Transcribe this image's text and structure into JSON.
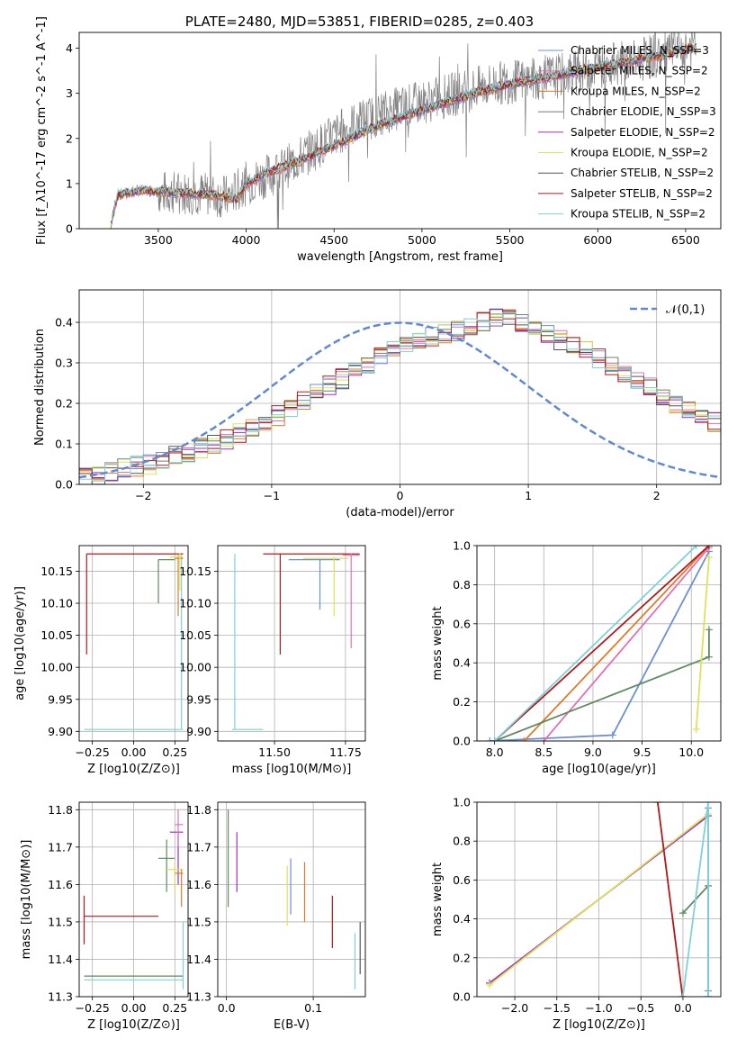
{
  "chart_data": [
    {
      "type": "line",
      "title": "PLATE=2480, MJD=53851, FIBERID=0285, z=0.403",
      "xlabel": "wavelength [Angstrom, rest frame]",
      "ylabel": "Flux [f_λ10^-17 erg cm^-2 s^-1 A^-1]",
      "xlim": [
        3050,
        6700
      ],
      "ylim": [
        0,
        4.35
      ],
      "xticks": [
        3500,
        4000,
        4500,
        5000,
        5500,
        6000,
        6500
      ],
      "yticks": [
        0,
        1,
        2,
        3,
        4
      ],
      "legend_position": "top-right",
      "data_spectrum": {
        "x": [
          3500,
          3700,
          3900,
          4000,
          4200,
          4400,
          4600,
          4800,
          5000,
          5200,
          5400,
          5600,
          5800,
          6000,
          6200,
          6400,
          6600
        ],
        "y": [
          0.8,
          0.8,
          0.7,
          1.0,
          1.3,
          1.8,
          2.3,
          2.6,
          2.8,
          3.0,
          3.2,
          3.3,
          3.4,
          3.6,
          3.7,
          3.9,
          4.1
        ]
      },
      "model_spectrum": {
        "x": [
          3230,
          3270,
          3400,
          3600,
          3800,
          3950,
          4000,
          4100,
          4300,
          4500,
          4700,
          4900,
          5100,
          5300,
          5500,
          5700,
          5900,
          6100,
          6300,
          6550
        ],
        "y": [
          0.1,
          0.75,
          0.85,
          0.8,
          0.75,
          0.65,
          1.0,
          1.2,
          1.5,
          1.85,
          2.2,
          2.5,
          2.75,
          3.0,
          3.2,
          3.35,
          3.5,
          3.65,
          3.8,
          4.0
        ]
      },
      "series": [
        {
          "name": "Chabrier MILES, N_SSP=3",
          "color": "#6b8fd6"
        },
        {
          "name": "Salpeter MILES, N_SSP=2",
          "color": "#e26fb3"
        },
        {
          "name": "Kroupa MILES, N_SSP=2",
          "color": "#e07b28"
        },
        {
          "name": "Chabrier ELODIE, N_SSP=3",
          "color": "#5e8a5e"
        },
        {
          "name": "Salpeter ELODIE, N_SSP=2",
          "color": "#9b30c4"
        },
        {
          "name": "Kroupa ELODIE, N_SSP=2",
          "color": "#dde25a"
        },
        {
          "name": "Chabrier STELIB, N_SSP=2",
          "color": "#555555"
        },
        {
          "name": "Salpeter STELIB, N_SSP=2",
          "color": "#b01818"
        },
        {
          "name": "Kroupa STELIB, N_SSP=2",
          "color": "#7fd0d8"
        }
      ]
    },
    {
      "type": "histogram",
      "xlabel": "(data-model)/error",
      "ylabel": "Normed distribution",
      "xlim": [
        -2.5,
        2.5
      ],
      "ylim": [
        0,
        0.48
      ],
      "xticks": [
        -2,
        -1,
        0,
        1,
        2
      ],
      "yticks": [
        0.0,
        0.1,
        0.2,
        0.3,
        0.4
      ],
      "grid": true,
      "legend": [
        "𝒩(0,1)"
      ],
      "legend_position": "top-right",
      "bin_width": 0.1,
      "bin_start": -2.5,
      "base_counts": [
        0.02,
        0.025,
        0.03,
        0.04,
        0.045,
        0.05,
        0.06,
        0.07,
        0.08,
        0.09,
        0.1,
        0.11,
        0.125,
        0.14,
        0.155,
        0.17,
        0.19,
        0.205,
        0.225,
        0.245,
        0.26,
        0.28,
        0.3,
        0.315,
        0.33,
        0.345,
        0.355,
        0.365,
        0.37,
        0.38,
        0.39,
        0.4,
        0.41,
        0.42,
        0.4,
        0.39,
        0.37,
        0.355,
        0.34,
        0.33,
        0.31,
        0.29,
        0.275,
        0.26,
        0.24,
        0.22,
        0.2,
        0.185,
        0.17,
        0.155,
        0.14,
        0.125,
        0.115,
        0.1,
        0.09,
        0.08,
        0.07,
        0.06,
        0.05,
        0.045
      ],
      "gaussian": {
        "mean": 0,
        "sigma": 1,
        "color": "#5f8ad2"
      }
    },
    {
      "type": "scatter",
      "xlabel": "Z [log10(Z/Z⊙)]",
      "ylabel": "age  [log10(age/yr)]",
      "xlim": [
        -0.33,
        0.33
      ],
      "ylim": [
        9.885,
        10.19
      ],
      "xticks": [
        -0.25,
        0.0,
        0.25
      ],
      "xticklabels": [
        "−0.25",
        "0.00",
        "0.25"
      ],
      "yticks": [
        9.9,
        9.95,
        10.0,
        10.05,
        10.1,
        10.15
      ],
      "yticklabels": [
        "9.90",
        "9.95",
        "10.00",
        "10.05",
        "10.10",
        "10.15"
      ],
      "grid": true,
      "points": [
        {
          "x": -0.285,
          "y": 10.177,
          "x0": -0.285,
          "x1": 0.3,
          "y0": 10.02,
          "y1": 10.177,
          "color": "#b01818"
        },
        {
          "x": 0.29,
          "y": 9.903,
          "x0": -0.3,
          "x1": 0.3,
          "y0": 9.903,
          "y1": 10.175,
          "color": "#7fd0d8"
        },
        {
          "x": 0.15,
          "y": 10.168,
          "x0": 0.15,
          "x1": 0.25,
          "y0": 10.1,
          "y1": 10.168,
          "color": "#5e8a5e"
        },
        {
          "x": 0.27,
          "y": 10.17,
          "x0": 0.25,
          "x1": 0.3,
          "y0": 10.08,
          "y1": 10.175,
          "color": "#e07b28"
        },
        {
          "x": 0.28,
          "y": 10.172,
          "x0": 0.22,
          "x1": 0.3,
          "y0": 10.12,
          "y1": 10.178,
          "color": "#dde25a"
        }
      ]
    },
    {
      "type": "scatter",
      "xlabel": "mass [log10(M/M⊙)]",
      "ylabel": "",
      "xlim": [
        11.3,
        11.82
      ],
      "ylim": [
        9.885,
        10.19
      ],
      "xticks": [
        11.5,
        11.75
      ],
      "xticklabels": [
        "11.50",
        "11.75"
      ],
      "yticks": [
        9.9,
        9.95,
        10.0,
        10.05,
        10.1,
        10.15
      ],
      "yticklabels": [
        "9.90",
        "9.95",
        "10.00",
        "10.05",
        "10.10",
        "10.15"
      ],
      "grid": true,
      "points": [
        {
          "x": 11.36,
          "y": 9.903,
          "x0": 11.35,
          "x1": 11.46,
          "y0": 9.903,
          "y1": 10.177,
          "color": "#7fd0d8"
        },
        {
          "x": 11.52,
          "y": 10.177,
          "x0": 11.46,
          "x1": 11.8,
          "y0": 10.02,
          "y1": 10.177,
          "color": "#b01818"
        },
        {
          "x": 11.66,
          "y": 10.168,
          "x0": 11.55,
          "x1": 11.73,
          "y0": 10.09,
          "y1": 10.168,
          "color": "#6b8fd6"
        },
        {
          "x": 11.71,
          "y": 10.17,
          "x0": 11.6,
          "x1": 11.76,
          "y0": 10.08,
          "y1": 10.172,
          "color": "#dde25a"
        },
        {
          "x": 11.77,
          "y": 10.175,
          "x0": 11.74,
          "x1": 11.8,
          "y0": 10.03,
          "y1": 10.178,
          "color": "#e26fb3"
        }
      ]
    },
    {
      "type": "line",
      "xlabel": "age  [log10(age/yr)]",
      "ylabel": "mass weight",
      "xlim": [
        7.82,
        10.3
      ],
      "ylim": [
        0,
        1.0
      ],
      "xticks": [
        8.0,
        8.5,
        9.0,
        9.5,
        10.0
      ],
      "xticklabels": [
        "8.0",
        "8.5",
        "9.0",
        "9.5",
        "10.0"
      ],
      "yticks": [
        0.0,
        0.2,
        0.4,
        0.6,
        0.8,
        1.0
      ],
      "yticklabels": [
        "0.0",
        "0.2",
        "0.4",
        "0.6",
        "0.8",
        "1.0"
      ],
      "grid": true,
      "series": [
        {
          "name": "Chabrier MILES",
          "color": "#6b8fd6",
          "x": [
            7.95,
            9.2,
            10.18
          ],
          "y": [
            0.0,
            0.03,
            0.97
          ]
        },
        {
          "name": "Salpeter MILES",
          "color": "#e26fb3",
          "x": [
            8.5,
            10.18
          ],
          "y": [
            0.0,
            0.99
          ]
        },
        {
          "name": "Kroupa MILES",
          "color": "#e07b28",
          "x": [
            8.3,
            10.18
          ],
          "y": [
            0.0,
            1.0
          ]
        },
        {
          "name": "Chabrier ELODIE",
          "color": "#5e8a5e",
          "x": [
            8.0,
            10.18,
            10.18
          ],
          "y": [
            0.0,
            0.43,
            0.57
          ]
        },
        {
          "name": "Kroupa ELODIE",
          "color": "#dde25a",
          "x": [
            10.05,
            10.18
          ],
          "y": [
            0.06,
            0.94
          ]
        },
        {
          "name": "Salpeter STELIB",
          "color": "#b01818",
          "x": [
            8.0,
            10.18
          ],
          "y": [
            0.0,
            1.0
          ]
        },
        {
          "name": "Kroupa STELIB",
          "color": "#7fd0d8",
          "x": [
            8.0,
            10.05
          ],
          "y": [
            0.0,
            1.0
          ]
        }
      ]
    },
    {
      "type": "scatter",
      "xlabel": "Z [log10(Z/Z⊙)]",
      "ylabel": "mass [log10(M/M⊙)]",
      "xlim": [
        -0.33,
        0.33
      ],
      "ylim": [
        11.3,
        11.82
      ],
      "xticks": [
        -0.25,
        0.0,
        0.25
      ],
      "xticklabels": [
        "−0.25",
        "0.00",
        "0.25"
      ],
      "yticks": [
        11.3,
        11.4,
        11.5,
        11.6,
        11.7,
        11.8
      ],
      "yticklabels": [
        "11.3",
        "11.4",
        "11.5",
        "11.6",
        "11.7",
        "11.8"
      ],
      "grid": true,
      "points": [
        {
          "x": -0.3,
          "y": 11.515,
          "x0": -0.3,
          "x1": 0.15,
          "y0": 11.44,
          "y1": 11.57,
          "color": "#b01818"
        },
        {
          "x": 0.0,
          "y": 11.355,
          "x0": -0.3,
          "x1": 0.3,
          "y0": 11.355,
          "y1": 11.355,
          "color": "#5e8a5e"
        },
        {
          "x": 0.0,
          "y": 11.345,
          "x0": -0.3,
          "x1": 0.3,
          "y0": 11.345,
          "y1": 11.345,
          "color": "#7fd0d8"
        },
        {
          "x": 0.2,
          "y": 11.67,
          "x0": 0.15,
          "x1": 0.25,
          "y0": 11.58,
          "y1": 11.72,
          "color": "#5e8a5e"
        },
        {
          "x": 0.27,
          "y": 11.74,
          "x0": 0.22,
          "x1": 0.3,
          "y0": 11.6,
          "y1": 11.74,
          "color": "#9b30c4"
        },
        {
          "x": 0.27,
          "y": 11.76,
          "x0": 0.25,
          "x1": 0.3,
          "y0": 11.7,
          "y1": 11.8,
          "color": "#e26fb3"
        },
        {
          "x": 0.25,
          "y": 11.64,
          "x0": 0.2,
          "x1": 0.3,
          "y0": 11.58,
          "y1": 11.66,
          "color": "#dde25a"
        },
        {
          "x": 0.29,
          "y": 11.63,
          "x0": 0.25,
          "x1": 0.3,
          "y0": 11.54,
          "y1": 11.64,
          "color": "#e07b28"
        },
        {
          "x": 0.3,
          "y": 11.45,
          "x0": 0.3,
          "x1": 0.3,
          "y0": 11.32,
          "y1": 11.5,
          "color": "#7fd0d8"
        }
      ]
    },
    {
      "type": "scatter",
      "xlabel": "E(B-V)",
      "ylabel": "",
      "xlim": [
        -0.01,
        0.16
      ],
      "ylim": [
        11.3,
        11.82
      ],
      "xticks": [
        0.0,
        0.1
      ],
      "xticklabels": [
        "0.0",
        "0.1"
      ],
      "yticks": [
        11.3,
        11.4,
        11.5,
        11.6,
        11.7,
        11.8
      ],
      "yticklabels": [
        "11.3",
        "11.4",
        "11.5",
        "11.6",
        "11.7",
        "11.8"
      ],
      "grid": true,
      "points": [
        {
          "x": 0.002,
          "y": 11.66,
          "y0": 11.54,
          "y1": 11.8,
          "color": "#5e8a5e"
        },
        {
          "x": 0.012,
          "y": 11.66,
          "y0": 11.58,
          "y1": 11.74,
          "color": "#9b30c4"
        },
        {
          "x": 0.07,
          "y": 11.57,
          "y0": 11.49,
          "y1": 11.65,
          "color": "#dde25a"
        },
        {
          "x": 0.074,
          "y": 11.6,
          "y0": 11.52,
          "y1": 11.67,
          "color": "#6b8fd6"
        },
        {
          "x": 0.09,
          "y": 11.58,
          "y0": 11.5,
          "y1": 11.66,
          "color": "#e07b28"
        },
        {
          "x": 0.122,
          "y": 11.5,
          "y0": 11.43,
          "y1": 11.57,
          "color": "#b01818"
        },
        {
          "x": 0.148,
          "y": 11.4,
          "y0": 11.32,
          "y1": 11.47,
          "color": "#7fd0d8"
        },
        {
          "x": 0.154,
          "y": 11.43,
          "y0": 11.36,
          "y1": 11.5,
          "color": "#555555"
        }
      ]
    },
    {
      "type": "line",
      "xlabel": "Z [log10(Z/Z⊙)]",
      "ylabel": "mass weight",
      "xlim": [
        -2.45,
        0.45
      ],
      "ylim": [
        0,
        1.0
      ],
      "xticks": [
        -2.0,
        -1.5,
        -1.0,
        -0.5,
        0.0
      ],
      "xticklabels": [
        "−2.0",
        "−1.5",
        "−1.0",
        "−0.5",
        "0.0"
      ],
      "yticks": [
        0.0,
        0.2,
        0.4,
        0.6,
        0.8,
        1.0
      ],
      "yticklabels": [
        "0.0",
        "0.2",
        "0.4",
        "0.6",
        "0.8",
        "1.0"
      ],
      "grid": true,
      "series": [
        {
          "name": "Salpeter ELODIE",
          "color": "#9b30c4",
          "x": [
            -2.3,
            0.3
          ],
          "y": [
            0.07,
            0.93
          ]
        },
        {
          "name": "Kroupa ELODIE",
          "color": "#dde25a",
          "x": [
            -2.3,
            0.3
          ],
          "y": [
            0.06,
            0.94
          ]
        },
        {
          "name": "Salpeter STELIB",
          "color": "#b01818",
          "x": [
            -0.3,
            -0.005
          ],
          "y": [
            1.0,
            0.0
          ]
        },
        {
          "name": "Chabrier ELODIE",
          "color": "#5e8a5e",
          "x": [
            0.0,
            0.3,
            0.3
          ],
          "y": [
            0.43,
            0.57,
            0.0
          ]
        },
        {
          "name": "Chabrier MILES",
          "color": "#6b8fd6",
          "x": [
            0.3,
            0.3
          ],
          "y": [
            0.03,
            0.97
          ]
        },
        {
          "name": "Kroupa STELIB",
          "color": "#7fd0d8",
          "x": [
            0.0,
            0.3,
            0.3
          ],
          "y": [
            0.0,
            1.0,
            0.0
          ]
        }
      ]
    }
  ]
}
